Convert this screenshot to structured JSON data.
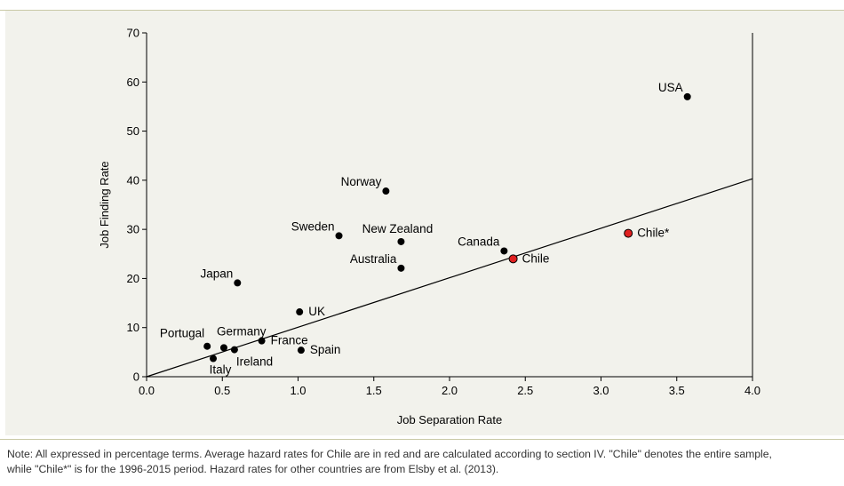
{
  "chart_data": {
    "type": "scatter",
    "xlabel": "Job Separation Rate",
    "ylabel": "Job Finding Rate",
    "xlim": [
      0,
      4
    ],
    "ylim": [
      0,
      70
    ],
    "x_ticks": [
      "0.0",
      "0.5",
      "1.0",
      "1.5",
      "2.0",
      "2.5",
      "3.0",
      "3.5",
      "4.0"
    ],
    "y_ticks": [
      "0",
      "10",
      "20",
      "30",
      "40",
      "50",
      "60",
      "70"
    ],
    "grid": false,
    "points": [
      {
        "label": "USA",
        "x": 3.57,
        "y": 57.0,
        "color": "#000000",
        "label_pos": "upper-left"
      },
      {
        "label": "Norway",
        "x": 1.58,
        "y": 37.8,
        "color": "#000000",
        "label_pos": "upper-left"
      },
      {
        "label": "Sweden",
        "x": 1.27,
        "y": 28.7,
        "color": "#000000",
        "label_pos": "upper-left"
      },
      {
        "label": "New Zealand",
        "x": 1.68,
        "y": 27.5,
        "color": "#000000",
        "label_pos": "upper-right"
      },
      {
        "label": "Canada",
        "x": 2.36,
        "y": 25.6,
        "color": "#000000",
        "label_pos": "upper-left"
      },
      {
        "label": "Australia",
        "x": 1.68,
        "y": 22.1,
        "color": "#000000",
        "label_pos": "upper-left"
      },
      {
        "label": "Japan",
        "x": 0.6,
        "y": 19.1,
        "color": "#000000",
        "label_pos": "upper-left"
      },
      {
        "label": "UK",
        "x": 1.01,
        "y": 13.2,
        "color": "#000000",
        "label_pos": "right"
      },
      {
        "label": "Portugal",
        "x": 0.4,
        "y": 6.2,
        "color": "#000000",
        "label_pos": "upper-left"
      },
      {
        "label": "Germany",
        "x": 0.51,
        "y": 5.9,
        "color": "#000000",
        "label_pos": "upper-right"
      },
      {
        "label": "France",
        "x": 0.76,
        "y": 7.3,
        "color": "#000000",
        "label_pos": "right"
      },
      {
        "label": "Ireland",
        "x": 0.58,
        "y": 5.5,
        "color": "#000000",
        "label_pos": "lower-right"
      },
      {
        "label": "Italy",
        "x": 0.44,
        "y": 3.7,
        "color": "#000000",
        "label_pos": "below"
      },
      {
        "label": "Spain",
        "x": 1.02,
        "y": 5.4,
        "color": "#000000",
        "label_pos": "right"
      },
      {
        "label": "Chile",
        "x": 2.42,
        "y": 24.0,
        "color": "#e02020",
        "label_pos": "right"
      },
      {
        "label": "Chile*",
        "x": 3.18,
        "y": 29.2,
        "color": "#e02020",
        "label_pos": "right"
      }
    ],
    "fit_line": {
      "x": [
        0,
        4
      ],
      "y": [
        0,
        40.3
      ]
    }
  },
  "note": {
    "line1": "Note: All expressed in percentage terms. Average hazard rates for Chile are in red and are calculated according to section IV. \"Chile\" denotes the entire sample,",
    "line2": "while \"Chile*\" is for the 1996-2015 period. Hazard rates for other countries are from Elsby et al. (2013)."
  }
}
